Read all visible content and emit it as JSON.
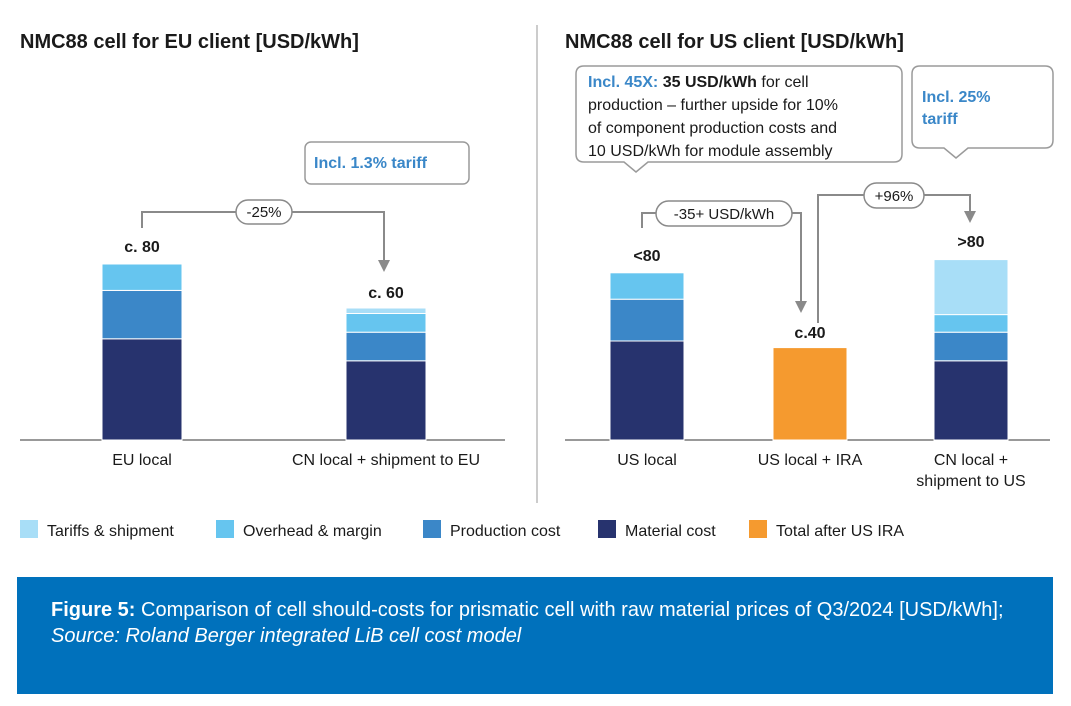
{
  "colors": {
    "tariffs": "#a8def7",
    "overhead": "#66c5ef",
    "production": "#3b87c8",
    "material": "#27336e",
    "ira": "#f59a2f",
    "callout_accent": "#3a87c8",
    "caption_bg": "#0071bc"
  },
  "legend": [
    {
      "key": "tariffs",
      "label": "Tariffs & shipment"
    },
    {
      "key": "overhead",
      "label": "Overhead & margin"
    },
    {
      "key": "production",
      "label": "Production cost"
    },
    {
      "key": "material",
      "label": "Material cost"
    },
    {
      "key": "ira",
      "label": "Total after US IRA"
    }
  ],
  "chart_data": [
    {
      "type": "bar",
      "stacked": true,
      "title": "NMC88 cell for EU client [USD/kWh]",
      "categories": [
        "EU local",
        "CN local + shipment to EU"
      ],
      "series": [
        {
          "name": "Material cost",
          "key": "material",
          "values": [
            46,
            36
          ]
        },
        {
          "name": "Production cost",
          "key": "production",
          "values": [
            22,
            13
          ]
        },
        {
          "name": "Overhead & margin",
          "key": "overhead",
          "values": [
            12,
            8.5
          ]
        },
        {
          "name": "Tariffs & shipment",
          "key": "tariffs",
          "values": [
            0,
            2.5
          ]
        }
      ],
      "value_labels": [
        "c. 80",
        "c. 60"
      ],
      "annotations": {
        "delta": "-25%",
        "callout": "Incl. 1.3% tariff"
      }
    },
    {
      "type": "bar",
      "stacked": true,
      "title": "NMC88 cell for US client [USD/kWh]",
      "categories": [
        "US local",
        "US local + IRA",
        "CN local + shipment to US"
      ],
      "series": [
        {
          "name": "Material cost",
          "key": "material",
          "values": [
            45,
            0,
            36
          ]
        },
        {
          "name": "Production cost",
          "key": "production",
          "values": [
            19,
            0,
            13
          ]
        },
        {
          "name": "Overhead & margin",
          "key": "overhead",
          "values": [
            12,
            0,
            8
          ]
        },
        {
          "name": "Tariffs & shipment",
          "key": "tariffs",
          "values": [
            0,
            0,
            25
          ]
        },
        {
          "name": "Total after US IRA",
          "key": "ira",
          "values": [
            0,
            42,
            0
          ]
        }
      ],
      "value_labels": [
        "<80",
        "c.40",
        ">80"
      ],
      "annotations": {
        "delta_1": "-35+ USD/kWh",
        "delta_2": "+96%",
        "callout_1": {
          "accent": "Incl. 45X:",
          "bold": "35 USD/kWh",
          "line1_rest": " for cell",
          "line2": "production – further upside for 10%",
          "line3": "of component production costs and",
          "line4": "10 USD/kWh for module assembly"
        },
        "callout_2": {
          "line1": "Incl. 25%",
          "line2": "tariff"
        }
      }
    }
  ],
  "caption": {
    "label": "Figure 5:",
    "text": " Comparison of cell should-costs for prismatic cell with raw material prices of Q3/2024 [USD/kWh];",
    "source": "Source: Roland Berger integrated LiB cell cost model"
  }
}
